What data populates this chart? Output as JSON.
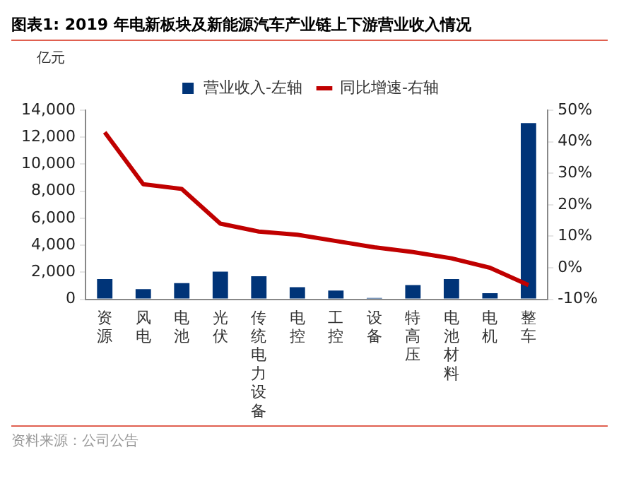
{
  "chart_data": {
    "type": "bar",
    "title": "图表1:  2019 年电新板块及新能源汽车产业链上下游营业收入情况",
    "ylabel": "亿元",
    "annotations": [
      "资料来源：公司公告"
    ],
    "categories": [
      "资源",
      "风电",
      "电池",
      "光伏",
      "传统电力设备",
      "电控",
      "工控",
      "设备",
      "特高压",
      "电池材料",
      "电机",
      "整车"
    ],
    "series": [
      {
        "name": "营业收入-左轴",
        "color": "#003478",
        "values": [
          1500,
          750,
          1200,
          2050,
          1700,
          900,
          650,
          100,
          1050,
          1500,
          450,
          13050
        ]
      },
      {
        "name": "同比增速-右轴",
        "type": "line",
        "axis": "y2",
        "color": "#c00000",
        "values": [
          43,
          26.5,
          25,
          14,
          11.5,
          10.5,
          8.5,
          6.5,
          5,
          3,
          0,
          -5.5
        ]
      }
    ],
    "ylim": [
      0,
      14000
    ],
    "yticks": [
      0,
      {
        "value": 2000,
        "label": "2,000"
      },
      {
        "value": 4000,
        "label": "4,000"
      },
      {
        "value": 6000,
        "label": "6,000"
      },
      {
        "value": 8000,
        "label": "8,000"
      },
      {
        "value": 10000,
        "label": "10,000"
      },
      {
        "value": 12000,
        "label": "12,000"
      },
      {
        "value": 14000,
        "label": "14,000"
      }
    ],
    "y2lim": [
      -10,
      50
    ],
    "y2ticks": [
      {
        "value": -10,
        "label": "-10%"
      },
      {
        "value": 0,
        "label": "0%"
      },
      {
        "value": 10,
        "label": "10%"
      },
      {
        "value": 20,
        "label": "20%"
      },
      {
        "value": 30,
        "label": "30%"
      },
      {
        "value": 40,
        "label": "40%"
      },
      {
        "value": 50,
        "label": "50%"
      }
    ],
    "legend": "top",
    "grid": false,
    "marker": "none"
  }
}
